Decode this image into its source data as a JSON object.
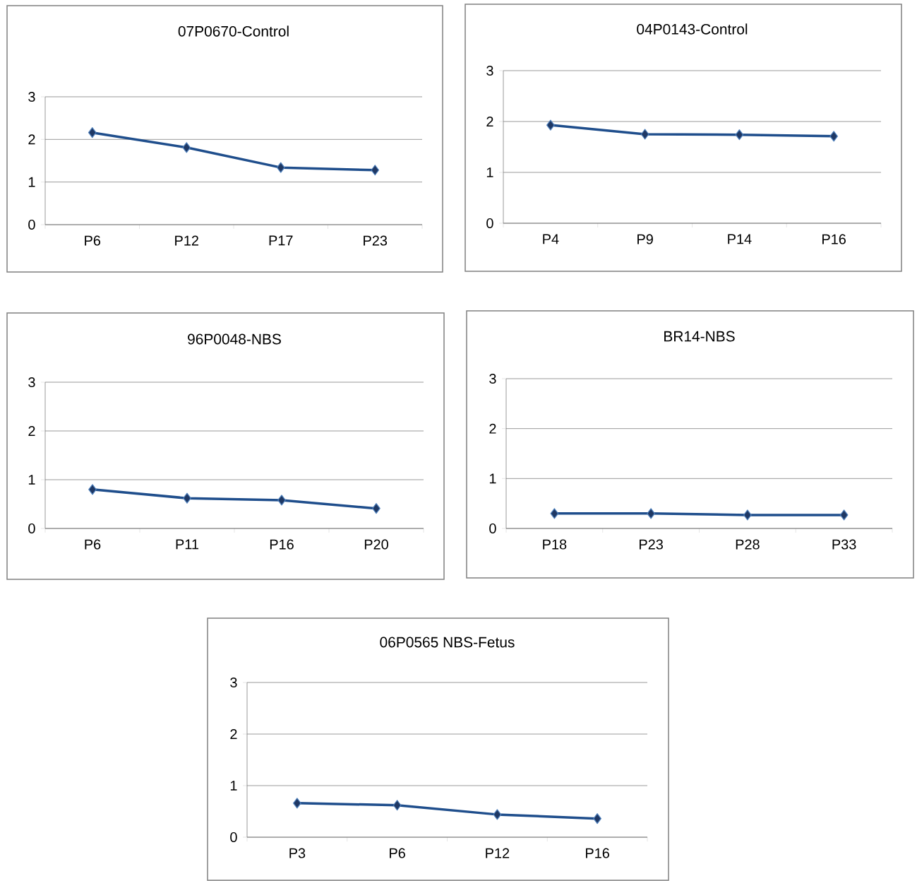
{
  "chart_data": [
    {
      "type": "line",
      "title": "07P0670-Control",
      "categories": [
        "P6",
        "P12",
        "P17",
        "P23"
      ],
      "series": [
        {
          "color": "#1f4e8c",
          "values": [
            2.16,
            1.81,
            1.34,
            1.28
          ]
        }
      ],
      "ylim": [
        0,
        3
      ],
      "yticks": [
        0,
        1,
        2,
        3
      ],
      "grid": "y",
      "marker": "diamond"
    },
    {
      "type": "line",
      "title": "04P0143-Control",
      "categories": [
        "P4",
        "P9",
        "P14",
        "P16"
      ],
      "series": [
        {
          "color": "#1f4e8c",
          "values": [
            1.93,
            1.75,
            1.74,
            1.71
          ]
        }
      ],
      "ylim": [
        0,
        3
      ],
      "yticks": [
        0,
        1,
        2,
        3
      ],
      "grid": "y",
      "marker": "diamond"
    },
    {
      "type": "line",
      "title": "96P0048-NBS",
      "categories": [
        "P6",
        "P11",
        "P16",
        "P20"
      ],
      "series": [
        {
          "color": "#1f4e8c",
          "values": [
            0.8,
            0.62,
            0.58,
            0.41
          ]
        }
      ],
      "ylim": [
        0,
        3
      ],
      "yticks": [
        0,
        1,
        2,
        3
      ],
      "grid": "y",
      "marker": "diamond"
    },
    {
      "type": "line",
      "title": "BR14-NBS",
      "categories": [
        "P18",
        "P23",
        "P28",
        "P33"
      ],
      "series": [
        {
          "color": "#1f4e8c",
          "values": [
            0.3,
            0.3,
            0.27,
            0.27
          ]
        }
      ],
      "ylim": [
        0,
        3
      ],
      "yticks": [
        0,
        1,
        2,
        3
      ],
      "grid": "y",
      "marker": "diamond"
    },
    {
      "type": "line",
      "title": "06P0565 NBS-Fetus",
      "categories": [
        "P3",
        "P6",
        "P12",
        "P16"
      ],
      "series": [
        {
          "color": "#1f4e8c",
          "values": [
            0.66,
            0.62,
            0.44,
            0.36
          ]
        }
      ],
      "ylim": [
        0,
        3
      ],
      "yticks": [
        0,
        1,
        2,
        3
      ],
      "grid": "y",
      "marker": "diamond"
    }
  ]
}
